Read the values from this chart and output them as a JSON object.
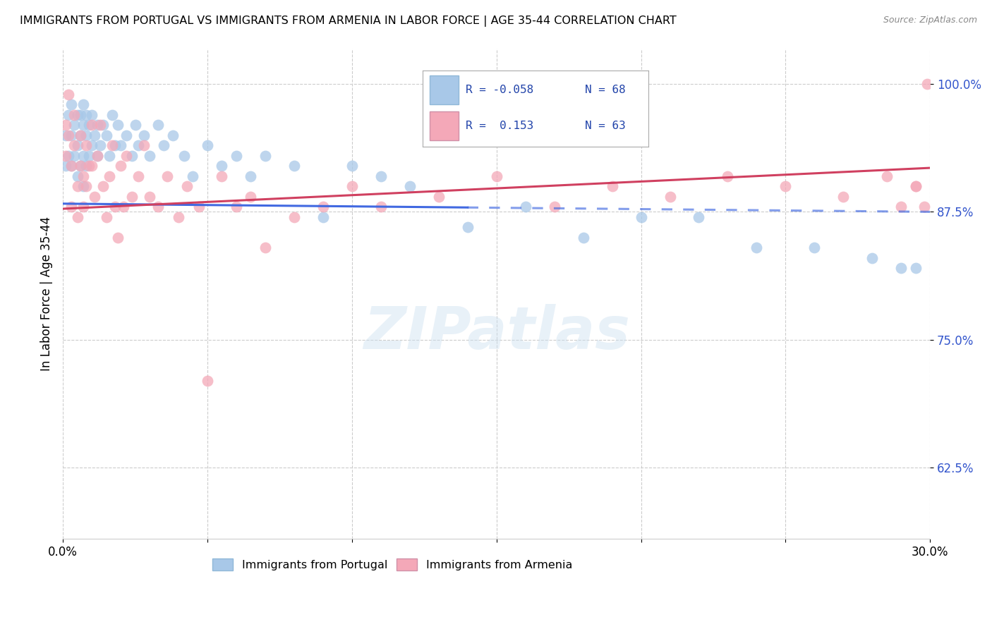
{
  "title": "IMMIGRANTS FROM PORTUGAL VS IMMIGRANTS FROM ARMENIA IN LABOR FORCE | AGE 35-44 CORRELATION CHART",
  "source": "Source: ZipAtlas.com",
  "ylabel": "In Labor Force | Age 35-44",
  "xlim": [
    0.0,
    0.3
  ],
  "ylim": [
    0.555,
    1.035
  ],
  "yticks": [
    0.625,
    0.75,
    0.875,
    1.0
  ],
  "ytick_labels": [
    "62.5%",
    "75.0%",
    "87.5%",
    "100.0%"
  ],
  "xticks": [
    0.0,
    0.05,
    0.1,
    0.15,
    0.2,
    0.25,
    0.3
  ],
  "xtick_labels": [
    "0.0%",
    "",
    "",
    "",
    "",
    "",
    "30.0%"
  ],
  "legend_R1": "-0.058",
  "legend_N1": "68",
  "legend_R2": "0.153",
  "legend_N2": "63",
  "color_portugal": "#a8c8e8",
  "color_armenia": "#f4a8b8",
  "trendline_color_portugal": "#4169e1",
  "trendline_color_armenia": "#d04060",
  "watermark": "ZIPatlas",
  "portugal_x": [
    0.001,
    0.001,
    0.002,
    0.002,
    0.003,
    0.003,
    0.003,
    0.004,
    0.004,
    0.005,
    0.005,
    0.005,
    0.006,
    0.006,
    0.006,
    0.007,
    0.007,
    0.007,
    0.007,
    0.008,
    0.008,
    0.008,
    0.009,
    0.009,
    0.01,
    0.01,
    0.011,
    0.012,
    0.012,
    0.013,
    0.014,
    0.015,
    0.016,
    0.017,
    0.018,
    0.019,
    0.02,
    0.022,
    0.024,
    0.025,
    0.026,
    0.028,
    0.03,
    0.033,
    0.035,
    0.038,
    0.042,
    0.045,
    0.05,
    0.055,
    0.06,
    0.065,
    0.07,
    0.08,
    0.09,
    0.1,
    0.11,
    0.12,
    0.14,
    0.16,
    0.18,
    0.2,
    0.22,
    0.24,
    0.26,
    0.28,
    0.29,
    0.295
  ],
  "portugal_y": [
    0.95,
    0.92,
    0.97,
    0.93,
    0.98,
    0.95,
    0.92,
    0.96,
    0.93,
    0.97,
    0.94,
    0.91,
    0.97,
    0.95,
    0.92,
    0.98,
    0.96,
    0.93,
    0.9,
    0.97,
    0.95,
    0.92,
    0.96,
    0.93,
    0.97,
    0.94,
    0.95,
    0.96,
    0.93,
    0.94,
    0.96,
    0.95,
    0.93,
    0.97,
    0.94,
    0.96,
    0.94,
    0.95,
    0.93,
    0.96,
    0.94,
    0.95,
    0.93,
    0.96,
    0.94,
    0.95,
    0.93,
    0.91,
    0.94,
    0.92,
    0.93,
    0.91,
    0.93,
    0.92,
    0.87,
    0.92,
    0.91,
    0.9,
    0.86,
    0.88,
    0.85,
    0.87,
    0.87,
    0.84,
    0.84,
    0.83,
    0.82,
    0.82
  ],
  "armenia_x": [
    0.001,
    0.001,
    0.002,
    0.002,
    0.003,
    0.003,
    0.004,
    0.004,
    0.005,
    0.005,
    0.006,
    0.006,
    0.007,
    0.007,
    0.008,
    0.008,
    0.009,
    0.01,
    0.01,
    0.011,
    0.012,
    0.013,
    0.014,
    0.015,
    0.016,
    0.017,
    0.018,
    0.019,
    0.02,
    0.021,
    0.022,
    0.024,
    0.026,
    0.028,
    0.03,
    0.033,
    0.036,
    0.04,
    0.043,
    0.047,
    0.05,
    0.055,
    0.06,
    0.065,
    0.07,
    0.08,
    0.09,
    0.1,
    0.11,
    0.13,
    0.15,
    0.17,
    0.19,
    0.21,
    0.23,
    0.25,
    0.27,
    0.285,
    0.29,
    0.295,
    0.295,
    0.298,
    0.299
  ],
  "armenia_y": [
    0.96,
    0.93,
    0.99,
    0.95,
    0.92,
    0.88,
    0.97,
    0.94,
    0.9,
    0.87,
    0.95,
    0.92,
    0.91,
    0.88,
    0.94,
    0.9,
    0.92,
    0.96,
    0.92,
    0.89,
    0.93,
    0.96,
    0.9,
    0.87,
    0.91,
    0.94,
    0.88,
    0.85,
    0.92,
    0.88,
    0.93,
    0.89,
    0.91,
    0.94,
    0.89,
    0.88,
    0.91,
    0.87,
    0.9,
    0.88,
    0.71,
    0.91,
    0.88,
    0.89,
    0.84,
    0.87,
    0.88,
    0.9,
    0.88,
    0.89,
    0.91,
    0.88,
    0.9,
    0.89,
    0.91,
    0.9,
    0.89,
    0.91,
    0.88,
    0.9,
    0.9,
    0.88,
    1.0
  ]
}
